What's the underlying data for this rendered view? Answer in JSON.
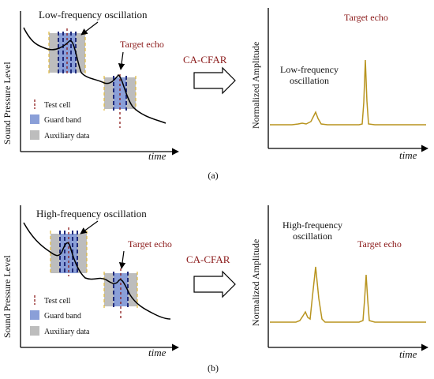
{
  "colors": {
    "curve": "#000000",
    "amplitude_line": "#b8941f",
    "test_cell": "#8b1a1a",
    "guard_band": "#8a9fd8",
    "guard_band_dash": "#1f2a7a",
    "auxiliary": "#bdbdbd",
    "auxiliary_dash": "#e0b83a"
  },
  "panels": [
    {
      "id": "a",
      "left": {
        "ylabel": "Sound Pressure Level",
        "xlabel": "time",
        "oscillation_label": "Low-frequency oscillation",
        "target_label": "Target echo",
        "legend": [
          "Test cell",
          "Guard band",
          "Auxiliary data"
        ]
      },
      "method_label": "CA-CFAR",
      "right": {
        "ylabel": "Normalized Amplitude",
        "xlabel": "time",
        "oscillation_label_line1": "Low-frequency",
        "oscillation_label_line2": "oscillation",
        "target_label": "Target echo"
      },
      "caption": "(a)"
    },
    {
      "id": "b",
      "left": {
        "ylabel": "Sound Pressure Level",
        "xlabel": "time",
        "oscillation_label": "High-frequency oscillation",
        "target_label": "Target echo",
        "legend": [
          "Test cell",
          "Guard band",
          "Auxiliary data"
        ]
      },
      "method_label": "CA-CFAR",
      "right": {
        "ylabel": "Normalized Amplitude",
        "xlabel": "time",
        "oscillation_label_line1": "High-frequency",
        "oscillation_label_line2": "oscillation",
        "target_label": "Target echo"
      },
      "caption": "(b)"
    }
  ]
}
